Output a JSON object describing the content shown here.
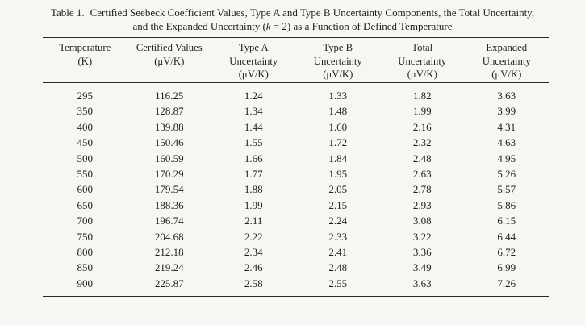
{
  "caption": {
    "label": "Table 1.",
    "line1_rest": "Certified Seebeck Coefficient Values, Type A and Type B Uncertainty Components, the Total Uncertainty,",
    "line2_prefix": "and the Expanded Uncertainty (",
    "k": "k",
    "line2_suffix": " = 2) as a Function of Defined Temperature"
  },
  "table": {
    "headers": [
      {
        "key": "temperature",
        "lines": [
          "Temperature",
          "(K)"
        ]
      },
      {
        "key": "certified-values",
        "lines": [
          "Certified Values",
          "(μV/K)"
        ]
      },
      {
        "key": "type-a-uncertainty",
        "lines": [
          "Type A",
          "Uncertainty",
          "(μV/K)"
        ]
      },
      {
        "key": "type-b-uncertainty",
        "lines": [
          "Type B",
          "Uncertainty",
          "(μV/K)"
        ]
      },
      {
        "key": "total-uncertainty",
        "lines": [
          "Total",
          "Uncertainty",
          "(μV/K)"
        ]
      },
      {
        "key": "expanded-uncertainty",
        "lines": [
          "Expanded",
          "Uncertainty",
          "(μV/K)"
        ]
      }
    ],
    "rows": [
      [
        "295",
        "116.25",
        "1.24",
        "1.33",
        "1.82",
        "3.63"
      ],
      [
        "350",
        "128.87",
        "1.34",
        "1.48",
        "1.99",
        "3.99"
      ],
      [
        "400",
        "139.88",
        "1.44",
        "1.60",
        "2.16",
        "4.31"
      ],
      [
        "450",
        "150.46",
        "1.55",
        "1.72",
        "2.32",
        "4.63"
      ],
      [
        "500",
        "160.59",
        "1.66",
        "1.84",
        "2.48",
        "4.95"
      ],
      [
        "550",
        "170.29",
        "1.77",
        "1.95",
        "2.63",
        "5.26"
      ],
      [
        "600",
        "179.54",
        "1.88",
        "2.05",
        "2.78",
        "5.57"
      ],
      [
        "650",
        "188.36",
        "1.99",
        "2.15",
        "2.93",
        "5.86"
      ],
      [
        "700",
        "196.74",
        "2.11",
        "2.24",
        "3.08",
        "6.15"
      ],
      [
        "750",
        "204.68",
        "2.22",
        "2.33",
        "3.22",
        "6.44"
      ],
      [
        "800",
        "212.18",
        "2.34",
        "2.41",
        "3.36",
        "6.72"
      ],
      [
        "850",
        "219.24",
        "2.46",
        "2.48",
        "3.49",
        "6.99"
      ],
      [
        "900",
        "225.87",
        "2.58",
        "2.55",
        "3.63",
        "7.26"
      ]
    ]
  },
  "colors": {
    "background": "#f6f6f3",
    "text": "#1f1f1f",
    "rule": "#2b2b2b"
  }
}
